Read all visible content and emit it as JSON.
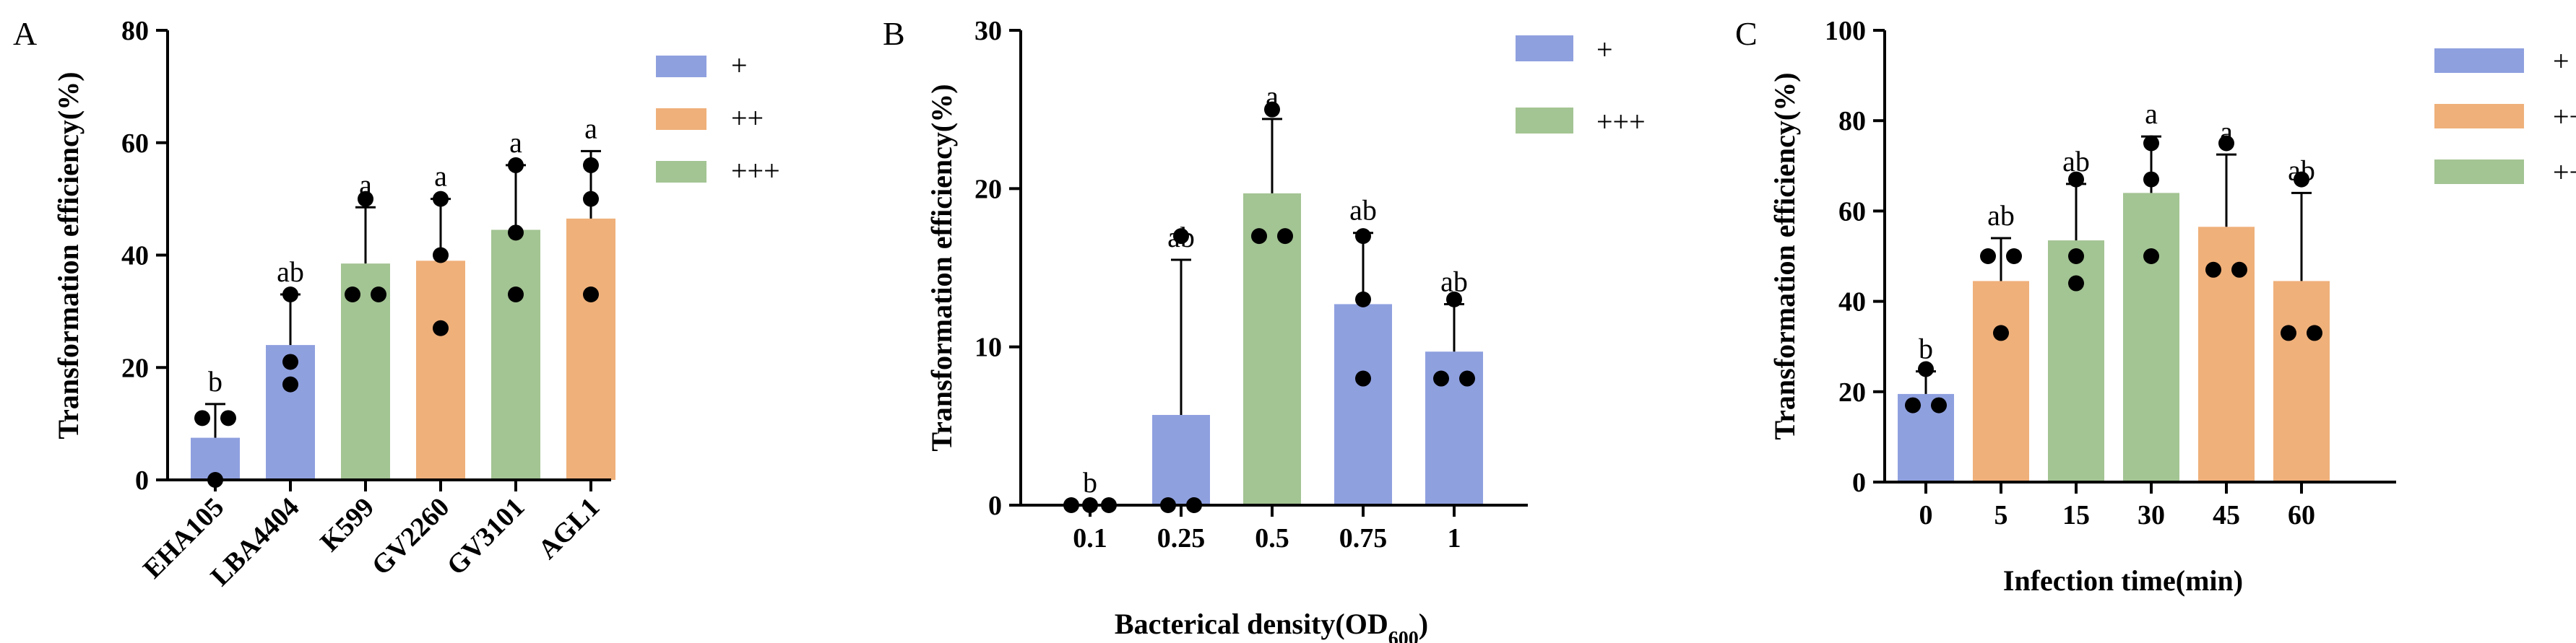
{
  "colors": {
    "+": "#8fa0df",
    "++": "#efb07a",
    "+++": "#a3c493",
    "axis": "#000000"
  },
  "chart_data": [
    {
      "panel": "A",
      "type": "bar",
      "ylabel": "Transformation efficiency(%)",
      "xlabel": "",
      "ylim": [
        0,
        80
      ],
      "yticks": [
        0,
        20,
        40,
        60,
        80
      ],
      "categories": [
        "EHA105",
        "LBA4404",
        "K599",
        "GV2260",
        "GV3101",
        "AGL1"
      ],
      "values": [
        7.5,
        24,
        38.5,
        39,
        44.5,
        46.5
      ],
      "errors": [
        6,
        9,
        10,
        11,
        11.5,
        12
      ],
      "groups": [
        "+",
        "+",
        "+++",
        "++",
        "+++",
        "++"
      ],
      "points": [
        [
          11,
          11,
          0
        ],
        [
          33,
          21,
          17
        ],
        [
          33,
          33,
          50
        ],
        [
          50,
          40,
          27
        ],
        [
          56,
          44,
          33
        ],
        [
          56,
          50,
          33
        ]
      ],
      "significance": [
        "b",
        "ab",
        "a",
        "a",
        "a",
        "a"
      ],
      "legend": [
        "+",
        "++",
        "+++"
      ],
      "x_tick_style": "rotated",
      "grid": false
    },
    {
      "panel": "B",
      "type": "bar",
      "ylabel": "Transformation efficiency(%)",
      "xlabel": "Bacterical density(OD",
      "xlabel_sub": "600",
      "xlabel_end": ")",
      "ylim": [
        0,
        30
      ],
      "yticks": [
        0,
        10,
        20,
        30
      ],
      "categories": [
        "0.1",
        "0.25",
        "0.5",
        "0.75",
        "1"
      ],
      "values": [
        0,
        5.7,
        19.7,
        12.7,
        9.7
      ],
      "errors": [
        0,
        9.8,
        4.7,
        4.5,
        3
      ],
      "groups": [
        "+",
        "+",
        "+++",
        "+",
        "+"
      ],
      "points": [
        [
          0,
          0,
          0
        ],
        [
          17,
          0,
          0
        ],
        [
          25,
          17,
          17
        ],
        [
          17,
          13,
          8
        ],
        [
          13,
          8,
          8
        ]
      ],
      "significance": [
        "b",
        "ab",
        "a",
        "ab",
        "ab"
      ],
      "legend": [
        "+",
        "+++"
      ],
      "grid": false
    },
    {
      "panel": "C",
      "type": "bar",
      "ylabel": "Transformation efficiency(%)",
      "xlabel": "Infection time(min)",
      "ylim": [
        0,
        100
      ],
      "yticks": [
        0,
        20,
        40,
        60,
        80,
        100
      ],
      "categories": [
        "0",
        "5",
        "15",
        "30",
        "45",
        "60"
      ],
      "values": [
        19.5,
        44.5,
        53.5,
        64,
        56.5,
        44.5
      ],
      "errors": [
        5,
        9.5,
        12.5,
        12.5,
        16,
        19.5
      ],
      "groups": [
        "+",
        "++",
        "+++",
        "+++",
        "++",
        "++"
      ],
      "points": [
        [
          25,
          17,
          17
        ],
        [
          50,
          33,
          50
        ],
        [
          67,
          44,
          50
        ],
        [
          75,
          67,
          50
        ],
        [
          75,
          47,
          47
        ],
        [
          67,
          33,
          33
        ]
      ],
      "significance": [
        "b",
        "ab",
        "ab",
        "a",
        "a",
        "ab"
      ],
      "legend": [
        "+",
        "++",
        "+++"
      ],
      "grid": false
    }
  ]
}
